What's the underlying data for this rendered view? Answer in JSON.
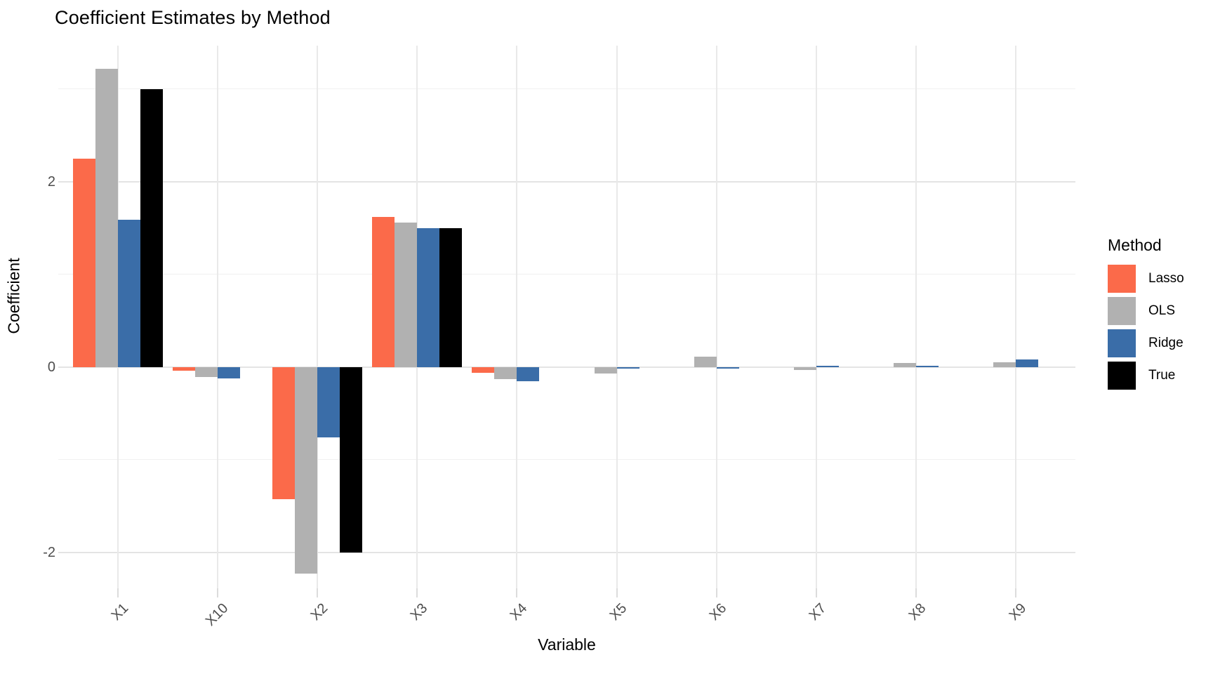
{
  "title": "Coefficient Estimates by Method",
  "chart_data": {
    "type": "bar",
    "title": "Coefficient Estimates by Method",
    "xlabel": "Variable",
    "ylabel": "Coefficient",
    "legend_title": "Method",
    "legend_position": "right",
    "grid": true,
    "categories": [
      "X1",
      "X10",
      "X2",
      "X3",
      "X4",
      "X5",
      "X6",
      "X7",
      "X8",
      "X9"
    ],
    "series": [
      {
        "name": "Lasso",
        "color": "#fb6a4a",
        "values": [
          2.25,
          -0.04,
          -1.43,
          1.62,
          -0.06,
          0,
          0,
          0,
          0,
          0
        ]
      },
      {
        "name": "OLS",
        "color": "#b1b1b1",
        "values": [
          3.22,
          -0.11,
          -2.23,
          1.56,
          -0.13,
          -0.07,
          0.11,
          -0.03,
          0.04,
          0.05
        ]
      },
      {
        "name": "Ridge",
        "color": "#3a6da8",
        "values": [
          1.59,
          -0.12,
          -0.76,
          1.5,
          -0.15,
          -0.02,
          -0.02,
          0.01,
          0.01,
          0.08
        ]
      },
      {
        "name": "True",
        "color": "#000000",
        "values": [
          3.0,
          0,
          -2.0,
          1.5,
          0,
          0,
          0,
          0,
          0,
          0
        ]
      }
    ],
    "ylim": [
      -2.39,
      3.47
    ],
    "y_major_ticks": [
      2,
      0,
      -2
    ],
    "y_minor_ticks": [
      3,
      1,
      -1
    ]
  }
}
